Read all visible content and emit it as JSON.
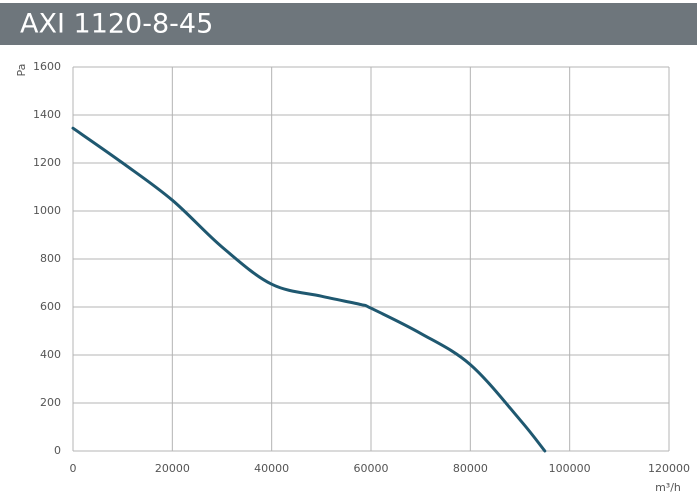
{
  "chart_data": {
    "type": "line",
    "title": "AXI 1120-8-45",
    "y_label": "Pa",
    "x_label": "m³/h",
    "x": [
      0,
      10000,
      20000,
      30000,
      40000,
      50000,
      58000,
      60000,
      70000,
      80000,
      90000,
      95000
    ],
    "values": [
      1345,
      1200,
      1045,
      850,
      695,
      645,
      610,
      595,
      490,
      360,
      130,
      0
    ],
    "color": "#1f5870",
    "xlim": [
      0,
      120000
    ],
    "xticks": [
      0,
      20000,
      40000,
      60000,
      80000,
      100000,
      120000
    ],
    "ylim": [
      0,
      1600
    ],
    "yticks": [
      0,
      200,
      400,
      600,
      800,
      1000,
      1200,
      1400,
      1600
    ],
    "grid": true
  }
}
